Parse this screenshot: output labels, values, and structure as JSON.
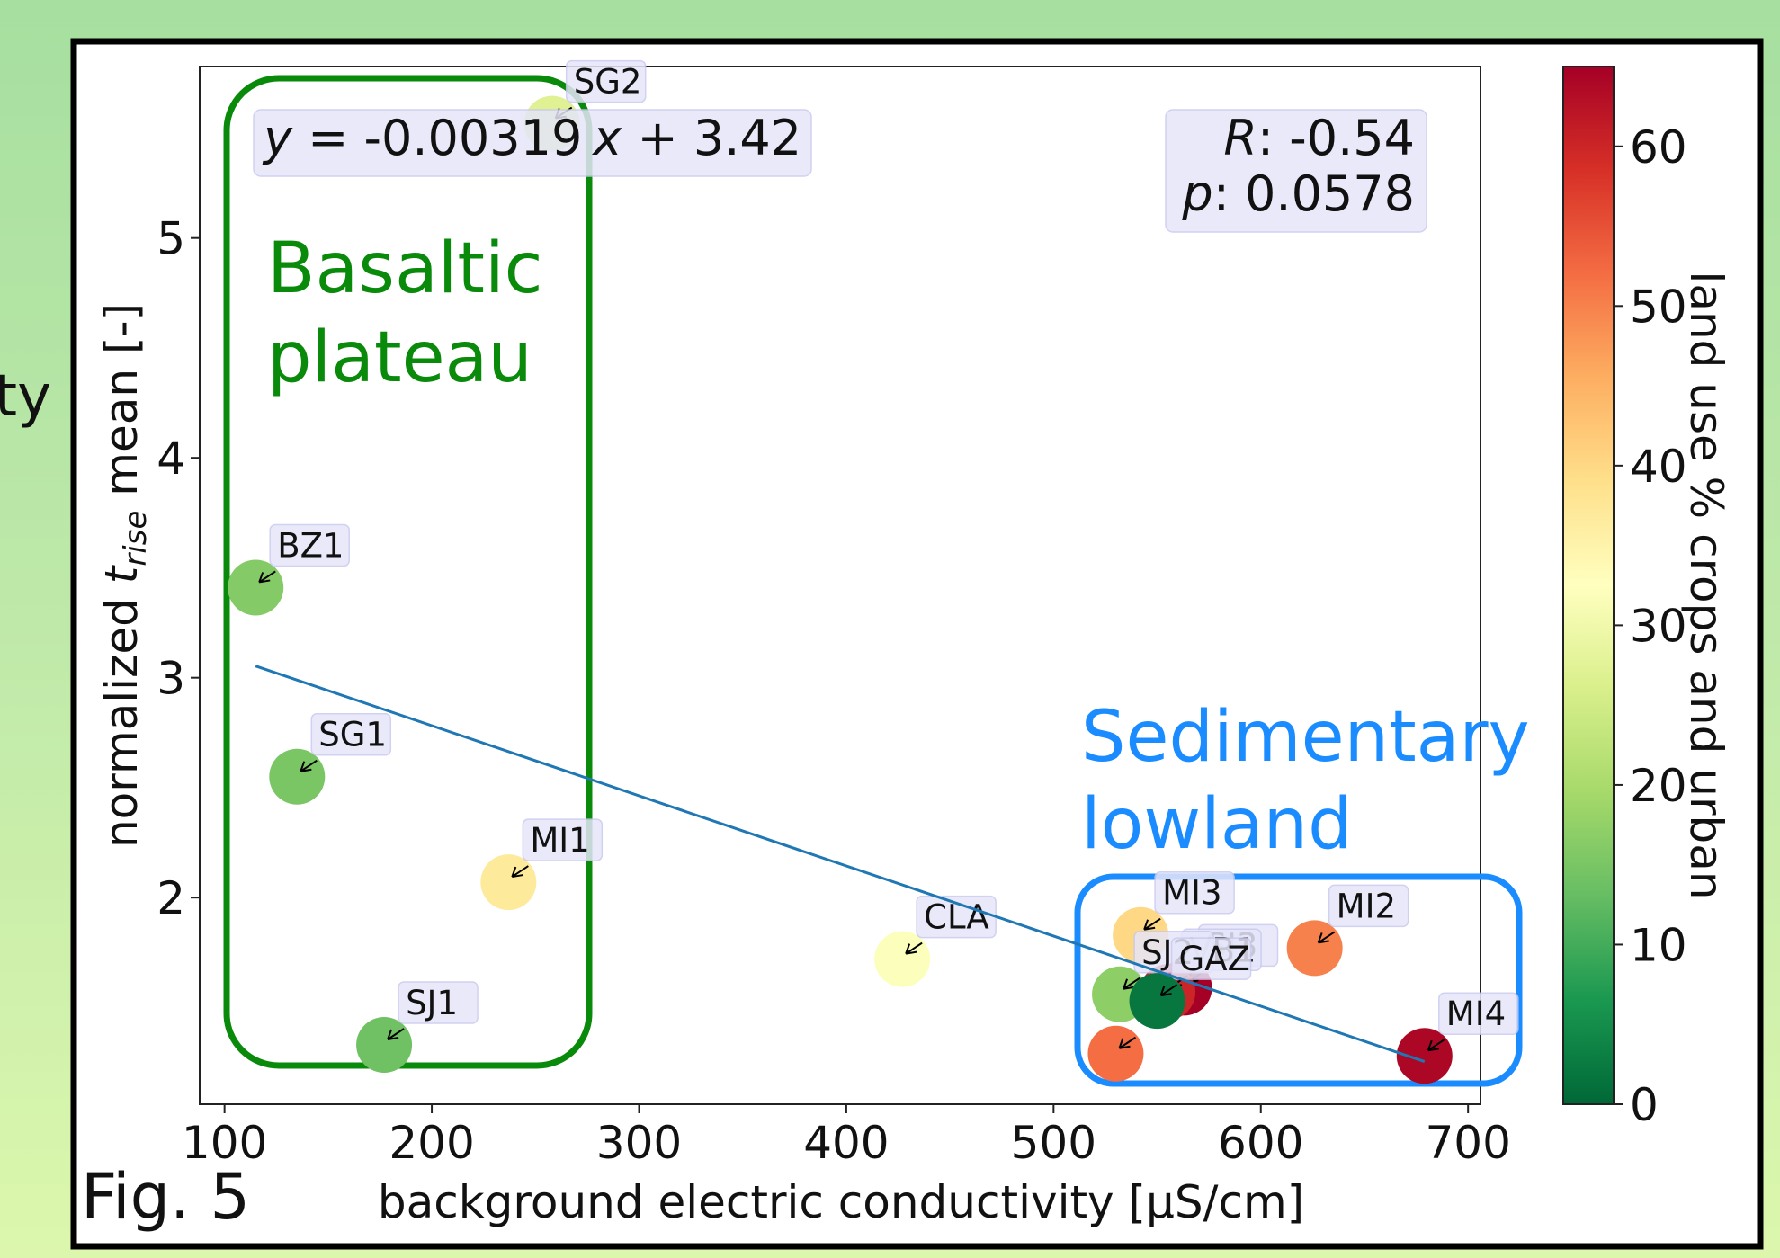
{
  "page": {
    "left_edge_text": "ty",
    "figure_number": "Fig. 5"
  },
  "chart_data": {
    "type": "scatter",
    "xlabel": "background electric conductivity [µS/cm]",
    "ylabel_prefix": "normalized ",
    "ylabel_symbol": "t",
    "ylabel_subscript": "rise",
    "ylabel_suffix": " mean [-]",
    "xlim": [
      88,
      706
    ],
    "ylim": [
      1.06,
      5.78
    ],
    "xticks": [
      100,
      200,
      300,
      400,
      500,
      600,
      700
    ],
    "yticks": [
      2,
      3,
      4,
      5
    ],
    "grid": false,
    "points": [
      {
        "label": "SG2",
        "x": 258,
        "y": 5.52,
        "landuse": 27
      },
      {
        "label": "BZ1",
        "x": 115,
        "y": 3.41,
        "landuse": 16
      },
      {
        "label": "SG1",
        "x": 135,
        "y": 2.55,
        "landuse": 15
      },
      {
        "label": "MI1",
        "x": 237,
        "y": 2.07,
        "landuse": 37
      },
      {
        "label": "SJ1",
        "x": 177,
        "y": 1.33,
        "landuse": 14
      },
      {
        "label": "CLA",
        "x": 427,
        "y": 1.72,
        "landuse": 32
      },
      {
        "label": "MI3",
        "x": 542,
        "y": 1.83,
        "landuse": 40
      },
      {
        "label": "MI2",
        "x": 626,
        "y": 1.77,
        "landuse": 50
      },
      {
        "label": "SJ3",
        "x": 563,
        "y": 1.59,
        "landuse": 65
      },
      {
        "label": "VB1",
        "x": 555,
        "y": 1.57,
        "landuse": 60
      },
      {
        "label": "SJ2",
        "x": 532,
        "y": 1.56,
        "landuse": 17
      },
      {
        "label": "GAZ",
        "x": 550,
        "y": 1.53,
        "landuse": 2
      },
      {
        "label": "",
        "x": 530,
        "y": 1.29,
        "landuse": 52
      },
      {
        "label": "MI4",
        "x": 679,
        "y": 1.28,
        "landuse": 64
      }
    ],
    "label_offsets_note": "",
    "fit": {
      "slope": -0.00319,
      "intercept": 3.42,
      "x_range": [
        115,
        679
      ],
      "color": "#1f77b4",
      "equation_lhs": "y",
      "equation_rhs": " = -0.00319",
      "equation_var": "x",
      "equation_tail": " + 3.42"
    },
    "stats": {
      "r_label": "R",
      "r_value": ": -0.54",
      "p_label": "p",
      "p_value": ": 0.0578"
    },
    "colorbar": {
      "label": "land use % crops and urban",
      "colormap": "RdYlGn_r",
      "range": [
        0,
        65
      ],
      "ticks": [
        0,
        10,
        20,
        30,
        40,
        50,
        60
      ]
    },
    "regions": [
      {
        "name_line1": "Basaltic",
        "name_line2": "plateau",
        "color": "#0a8a0a"
      },
      {
        "name_line1": "Sedimentary",
        "name_line2": "lowland",
        "color": "#1a8cff"
      }
    ]
  }
}
